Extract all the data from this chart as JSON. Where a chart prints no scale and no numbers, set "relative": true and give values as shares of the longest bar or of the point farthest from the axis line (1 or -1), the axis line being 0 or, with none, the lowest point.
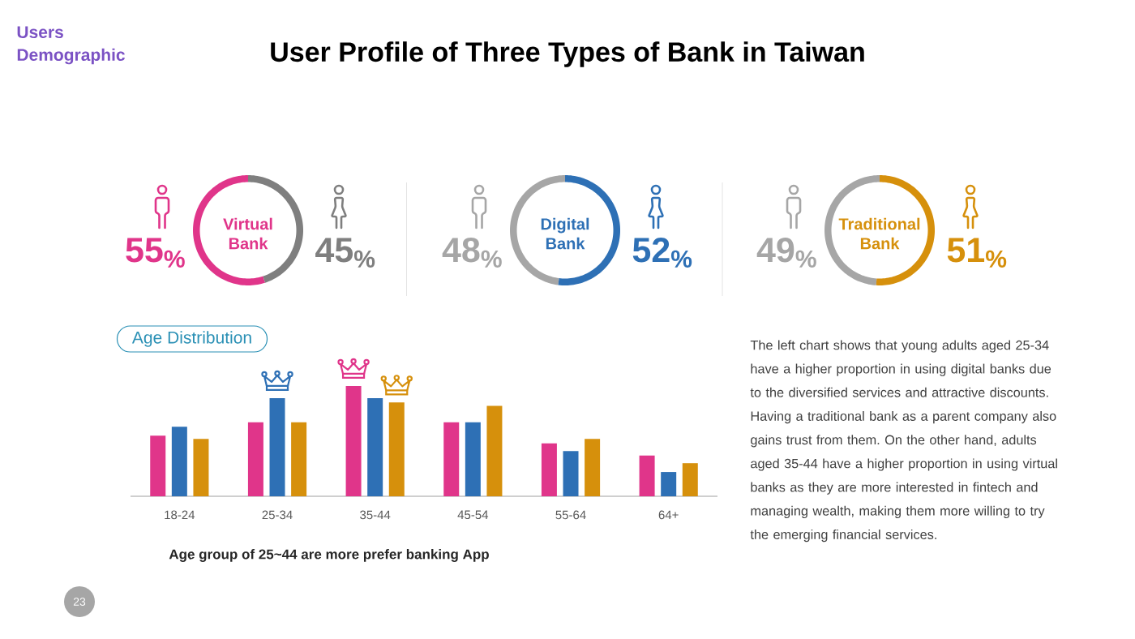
{
  "chart_data": [
    {
      "type": "other",
      "title": "User Profile of Three Types of Bank in Taiwan",
      "annotations": [
        "Users Demographic"
      ]
    },
    {
      "type": "donut",
      "title": "Virtual Bank",
      "categories": [
        null,
        null
      ],
      "values": [
        55,
        45
      ],
      "colors": [
        "#e0358a",
        "#7f7f7f"
      ],
      "value_labels": [
        "55$_{%}$",
        "45$_{%}$"
      ]
    },
    {
      "type": "donut",
      "title": "Digital Bank",
      "categories": [
        null,
        null
      ],
      "values": [
        48,
        52
      ],
      "colors": [
        "#a6a6a6",
        "#2e70b5"
      ],
      "value_labels": [
        "48$_{%}$",
        "52$_{%}$"
      ]
    },
    {
      "type": "donut",
      "title": "Traditional Bank",
      "categories": [
        null,
        null
      ],
      "values": [
        49,
        51
      ],
      "colors": [
        "#a6a6a6",
        "#d6900c"
      ],
      "value_labels": [
        "49$_{%}$",
        "51$_{%}$"
      ]
    },
    {
      "type": "bar",
      "title": "Age Distribution",
      "categories": [
        "18-24",
        "25-34",
        "35-44",
        "45-54",
        "55-64",
        "64+"
      ],
      "series": [
        {
          "color": "#e0358a",
          "values": [
            0.55,
            0.67,
            1,
            0.67,
            0.48,
            0.37
          ]
        },
        {
          "color": "#2e70b5",
          "values": [
            0.63,
            0.89,
            0.89,
            0.67,
            0.41,
            0.22
          ]
        },
        {
          "color": "#d6900c",
          "values": [
            0.52,
            0.67,
            0.85,
            0.82,
            0.52,
            0.3
          ]
        }
      ],
      "relative": true,
      "annotations": [
        "Age group of 25~44 are more prefer banking App"
      ]
    },
    {
      "type": "other",
      "annotations": [
        "The left chart shows that young adults aged 25-34 have a higher proportion in using digital banks due to the diversified services and attractive discounts. Having a traditional bank as a parent company also gains trust from them. On the other hand, adults aged 35-44 have a higher proportion in using virtual banks as they are more interested in fintech and managing wealth, making them more willing to try the emerging financial services."
      ]
    },
    {
      "type": "other",
      "annotations": [
        "23"
      ]
    }
  ]
}
